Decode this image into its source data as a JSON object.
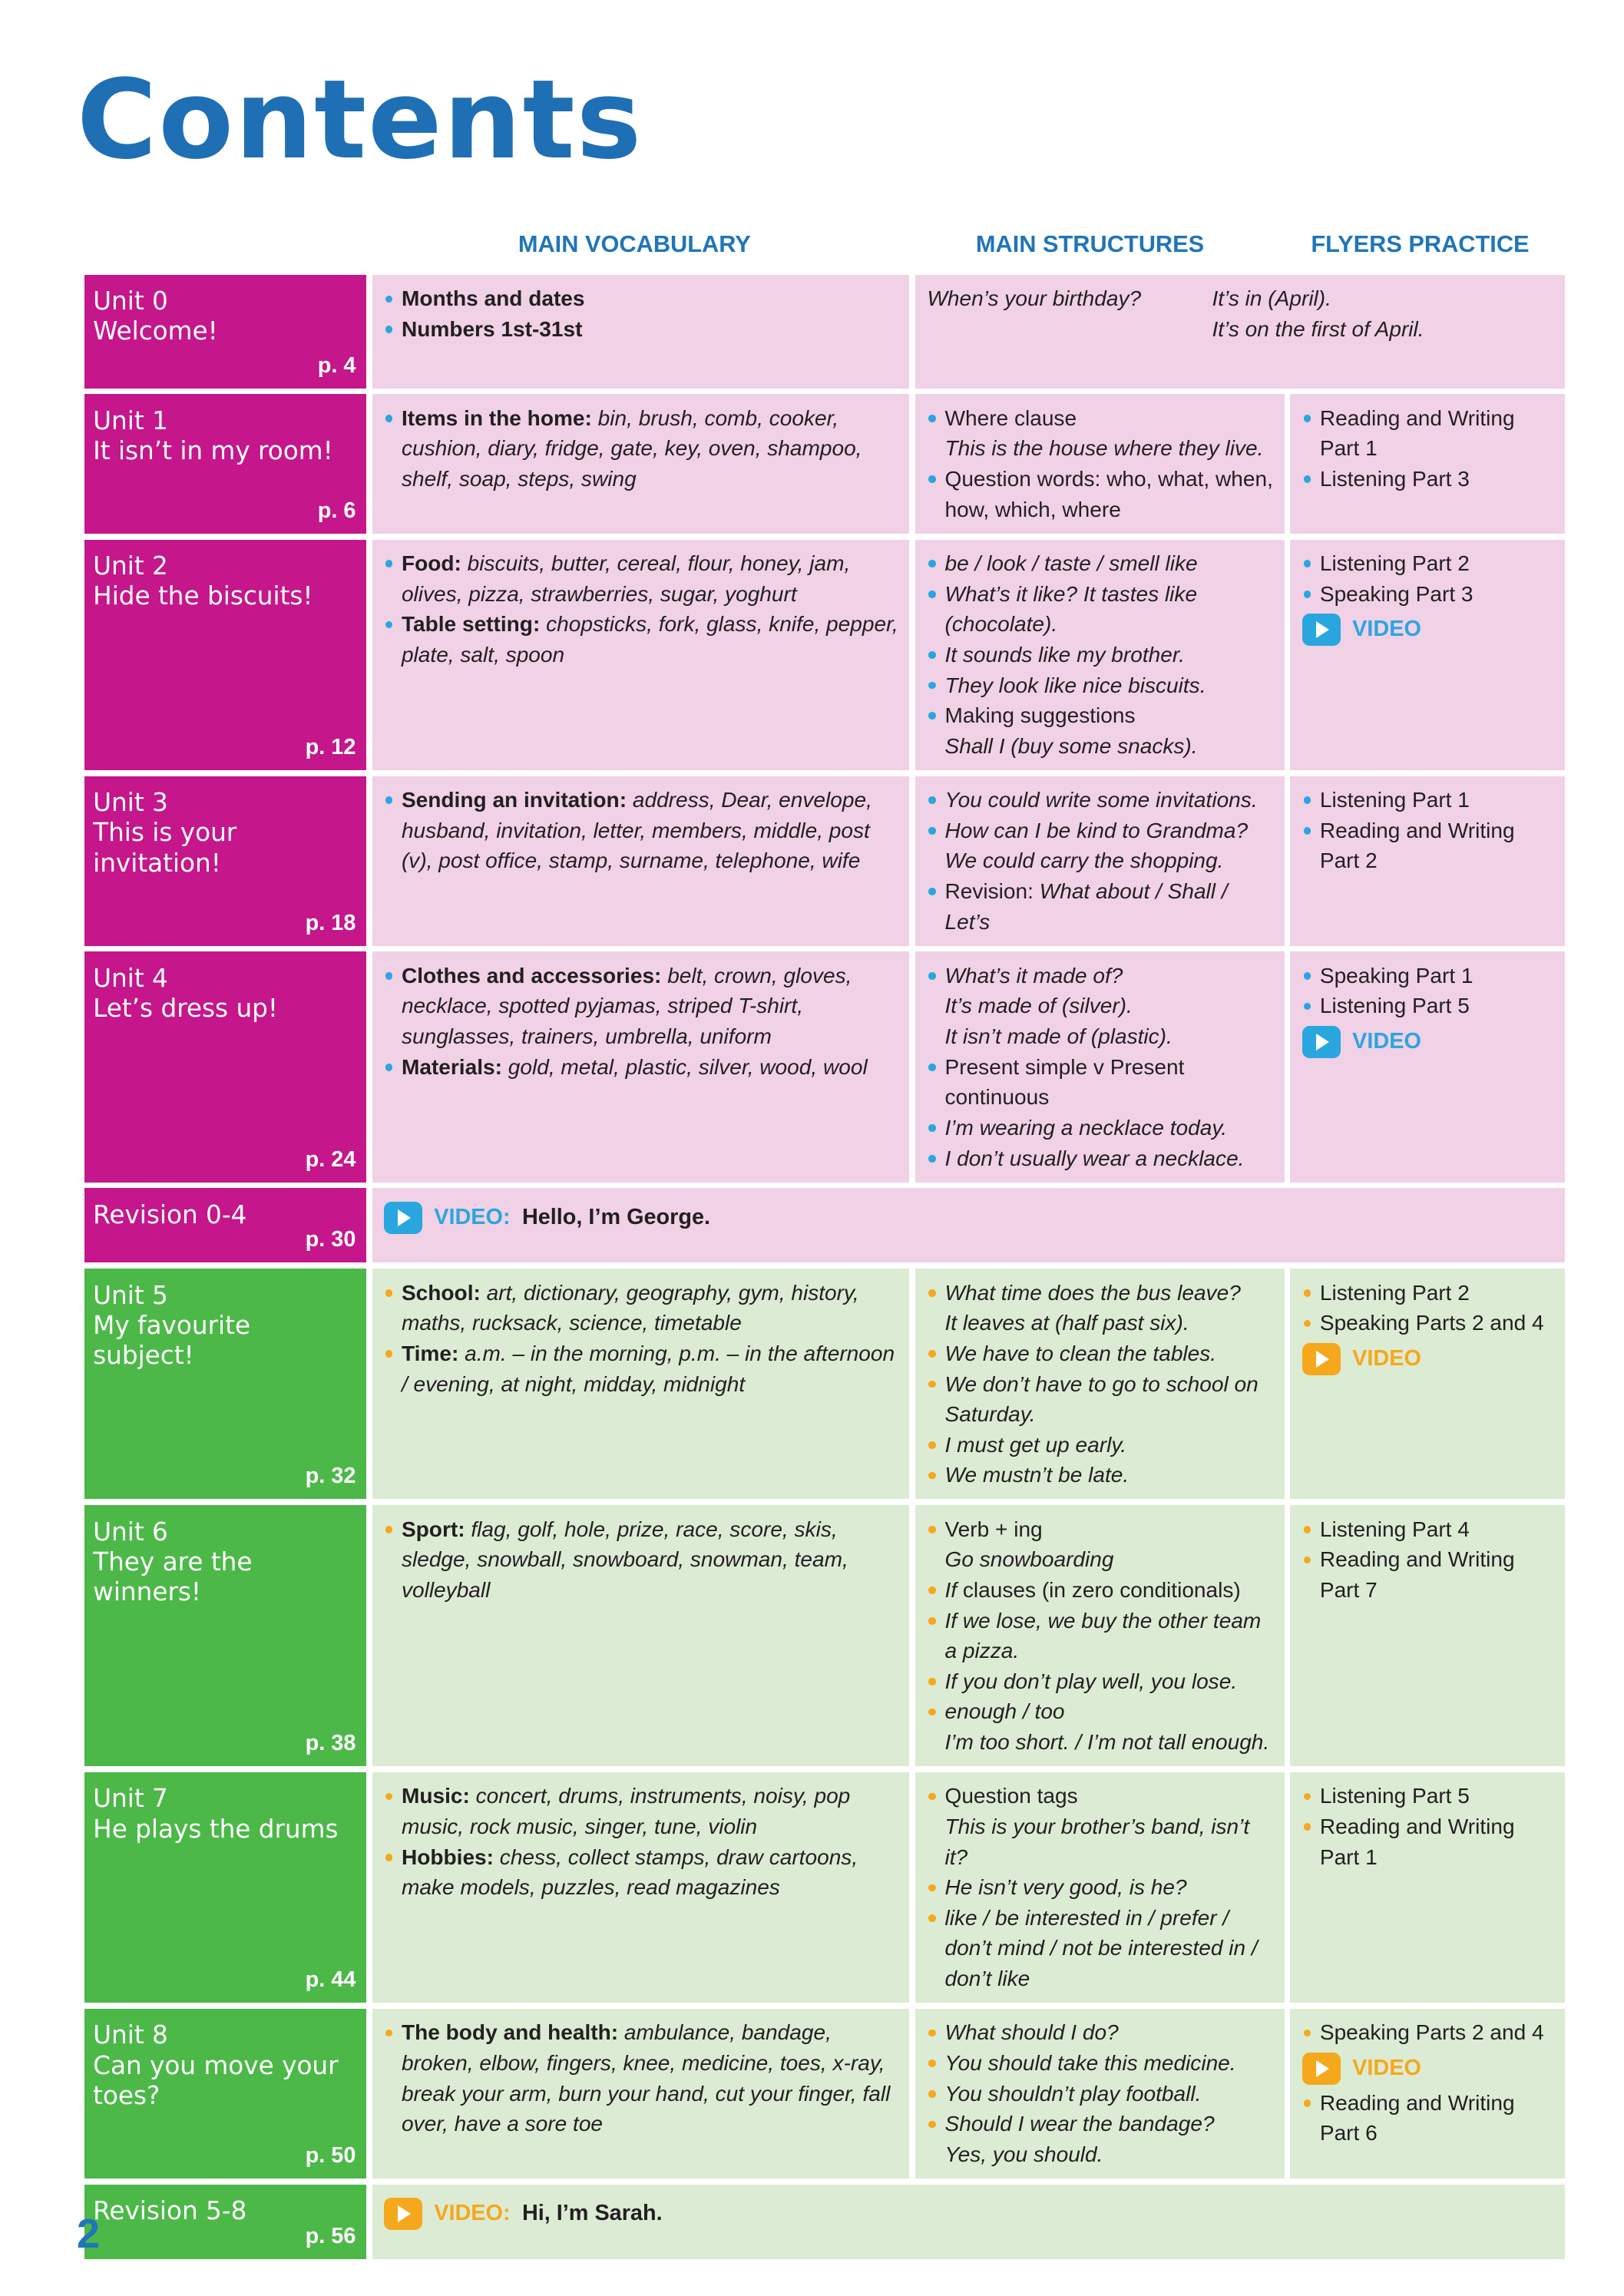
{
  "title": "Contents",
  "page_number": "2",
  "headers": {
    "vocab": "MAIN VOCABULARY",
    "structures": "MAIN STRUCTURES",
    "flyers": "FLYERS PRACTICE"
  },
  "colors": {
    "pink_unit": "#c5168b",
    "pink_cell": "#f0d1e6",
    "green_unit": "#4cb848",
    "green_cell": "#dcebd4",
    "blue_bullet": "#2aa6df",
    "orange_bullet": "#f5a81c",
    "heading_blue": "#1f75bb"
  },
  "rows": [
    {
      "type": "unit0",
      "theme": "pink",
      "unit": "Unit 0",
      "name": "Welcome!",
      "page": "p. 4",
      "vocab": [
        {
          "b": "Months and dates",
          "t": ""
        },
        {
          "b": "Numbers 1st-31st",
          "t": ""
        }
      ],
      "structures_pairs": [
        {
          "q": "When’s your birthday?",
          "a": "It’s in (April)."
        },
        {
          "q": "",
          "a": "It’s on the first of April."
        }
      ]
    },
    {
      "type": "unit",
      "theme": "pink",
      "unit": "Unit 1",
      "name": "It isn’t in my room!",
      "page": "p. 6",
      "vocab": [
        {
          "b": "Items in the home:",
          "t": " bin, brush, comb, cooker, cushion, diary, fridge, gate, key, oven, shampoo, shelf, soap, steps, swing"
        }
      ],
      "structures": [
        {
          "lines": [
            [
              {
                "t": "Where clause"
              }
            ],
            [
              {
                "t": "This is the house where they live.",
                "i": true
              }
            ]
          ]
        },
        {
          "lines": [
            [
              {
                "t": "Question words: who, what, when, how, which, where"
              }
            ]
          ]
        }
      ],
      "flyers": [
        {
          "t": "Reading and Writing Part 1"
        },
        {
          "t": "Listening Part 3"
        }
      ]
    },
    {
      "type": "unit",
      "theme": "pink",
      "unit": "Unit 2",
      "name": "Hide the biscuits!",
      "page": "p. 12",
      "vocab": [
        {
          "b": "Food:",
          "t": " biscuits, butter, cereal, flour, honey, jam, olives, pizza, strawberries, sugar, yoghurt"
        },
        {
          "b": "Table setting:",
          "t": " chopsticks, fork, glass, knife, pepper, plate, salt, spoon"
        }
      ],
      "structures": [
        {
          "lines": [
            [
              {
                "t": "be / look / taste / smell like",
                "i": true
              }
            ]
          ]
        },
        {
          "lines": [
            [
              {
                "t": "What’s it like? It tastes like (chocolate).",
                "i": true
              }
            ]
          ]
        },
        {
          "lines": [
            [
              {
                "t": "It sounds like my brother.",
                "i": true
              }
            ]
          ]
        },
        {
          "lines": [
            [
              {
                "t": "They look like nice biscuits.",
                "i": true
              }
            ]
          ]
        },
        {
          "lines": [
            [
              {
                "t": "Making suggestions"
              }
            ],
            [
              {
                "t": "Shall I (buy some snacks).",
                "i": true
              }
            ]
          ]
        }
      ],
      "flyers": [
        {
          "t": "Listening Part 2"
        },
        {
          "t": "Speaking Part 3"
        },
        {
          "video": "VIDEO"
        }
      ]
    },
    {
      "type": "unit",
      "theme": "pink",
      "unit": "Unit 3",
      "name": "This is your invitation!",
      "page": "p. 18",
      "vocab": [
        {
          "b": "Sending an invitation:",
          "t": " address, Dear, envelope, husband, invitation, letter, members, middle, post (v), post office, stamp, surname, telephone, wife"
        }
      ],
      "structures": [
        {
          "lines": [
            [
              {
                "t": "You could write some invitations.",
                "i": true
              }
            ]
          ]
        },
        {
          "lines": [
            [
              {
                "t": "How can I be kind to Grandma?",
                "i": true
              }
            ],
            [
              {
                "t": "We could carry the shopping.",
                "i": true
              }
            ]
          ]
        },
        {
          "lines": [
            [
              {
                "t": "Revision: "
              },
              {
                "t": "What about / Shall / Let’s",
                "i": true
              }
            ]
          ]
        }
      ],
      "flyers": [
        {
          "t": "Listening Part 1"
        },
        {
          "t": "Reading and Writing Part 2"
        }
      ]
    },
    {
      "type": "unit",
      "theme": "pink",
      "unit": "Unit 4",
      "name": "Let’s dress up!",
      "page": "p. 24",
      "vocab": [
        {
          "b": "Clothes and accessories:",
          "t": " belt, crown, gloves, necklace, spotted pyjamas, striped T-shirt, sunglasses, trainers, umbrella, uniform"
        },
        {
          "b": "Materials:",
          "t": " gold, metal, plastic, silver, wood, wool"
        }
      ],
      "structures": [
        {
          "lines": [
            [
              {
                "t": "What’s it made of?",
                "i": true
              }
            ],
            [
              {
                "t": "It’s made of (silver).",
                "i": true
              }
            ],
            [
              {
                "t": "It isn’t made of (plastic).",
                "i": true
              }
            ]
          ]
        },
        {
          "lines": [
            [
              {
                "t": "Present simple v Present continuous"
              }
            ]
          ]
        },
        {
          "lines": [
            [
              {
                "t": "I’m wearing a necklace today.",
                "i": true
              }
            ]
          ]
        },
        {
          "lines": [
            [
              {
                "t": "I don’t usually wear a necklace.",
                "i": true
              }
            ]
          ]
        }
      ],
      "flyers": [
        {
          "t": "Speaking Part 1"
        },
        {
          "t": "Listening Part 5"
        },
        {
          "video": "VIDEO"
        }
      ]
    },
    {
      "type": "revision",
      "theme": "pink",
      "unit": "Revision 0-4",
      "page": "p. 30",
      "video_label": "VIDEO:",
      "video_title": "Hello, I’m George."
    },
    {
      "type": "unit",
      "theme": "green",
      "unit": "Unit 5",
      "name": "My favourite subject!",
      "page": "p. 32",
      "vocab": [
        {
          "b": "School:",
          "t": " art, dictionary, geography, gym, history, maths, rucksack, science, timetable"
        },
        {
          "b": "Time:",
          "t": " a.m. – in the morning, p.m. – in the afternoon / evening, at night, midday, midnight"
        }
      ],
      "structures": [
        {
          "lines": [
            [
              {
                "t": "What time does the bus leave?",
                "i": true
              }
            ],
            [
              {
                "t": "It leaves at (half past six).",
                "i": true
              }
            ]
          ]
        },
        {
          "lines": [
            [
              {
                "t": "We have to clean the tables.",
                "i": true
              }
            ]
          ]
        },
        {
          "lines": [
            [
              {
                "t": "We don’t have to go to school on Saturday.",
                "i": true
              }
            ]
          ]
        },
        {
          "lines": [
            [
              {
                "t": "I must get up early.",
                "i": true
              }
            ]
          ]
        },
        {
          "lines": [
            [
              {
                "t": "We mustn’t be late.",
                "i": true
              }
            ]
          ]
        }
      ],
      "flyers": [
        {
          "t": "Listening Part 2"
        },
        {
          "t": "Speaking Parts 2 and 4"
        },
        {
          "video": "VIDEO"
        }
      ]
    },
    {
      "type": "unit",
      "theme": "green",
      "unit": "Unit 6",
      "name": "They are the winners!",
      "page": "p. 38",
      "vocab": [
        {
          "b": "Sport:",
          "t": " flag, golf, hole, prize, race, score, skis, sledge, snowball, snowboard, snowman, team, volleyball"
        }
      ],
      "structures": [
        {
          "lines": [
            [
              {
                "t": "Verb + ing"
              }
            ],
            [
              {
                "t": "Go snowboarding",
                "i": true
              }
            ]
          ]
        },
        {
          "lines": [
            [
              {
                "t": "If",
                "i": true
              },
              {
                "t": " clauses (in zero conditionals)"
              }
            ]
          ]
        },
        {
          "lines": [
            [
              {
                "t": "If we lose, we buy the other team a pizza.",
                "i": true
              }
            ]
          ]
        },
        {
          "lines": [
            [
              {
                "t": "If you don’t play well, you lose.",
                "i": true
              }
            ]
          ]
        },
        {
          "lines": [
            [
              {
                "t": "enough / too",
                "i": true
              }
            ],
            [
              {
                "t": "I’m too short. / I’m not tall enough.",
                "i": true
              }
            ]
          ]
        }
      ],
      "flyers": [
        {
          "t": "Listening Part 4"
        },
        {
          "t": "Reading and Writing Part 7"
        }
      ]
    },
    {
      "type": "unit",
      "theme": "green",
      "unit": "Unit 7",
      "name": "He plays the drums",
      "page": "p. 44",
      "vocab": [
        {
          "b": "Music:",
          "t": " concert, drums, instruments, noisy, pop music, rock music, singer, tune, violin"
        },
        {
          "b": "Hobbies:",
          "t": " chess, collect stamps, draw cartoons, make models, puzzles, read magazines"
        }
      ],
      "structures": [
        {
          "lines": [
            [
              {
                "t": "Question tags"
              }
            ],
            [
              {
                "t": "This is your brother’s band, isn’t it?",
                "i": true
              }
            ]
          ]
        },
        {
          "lines": [
            [
              {
                "t": "He isn’t very good, is he?",
                "i": true
              }
            ]
          ]
        },
        {
          "lines": [
            [
              {
                "t": "like / be interested in / prefer / don’t mind / not be interested in / don’t like",
                "i": true
              }
            ]
          ]
        }
      ],
      "flyers": [
        {
          "t": "Listening Part 5"
        },
        {
          "t": "Reading and Writing Part 1"
        }
      ]
    },
    {
      "type": "unit",
      "theme": "green",
      "unit": "Unit 8",
      "name": "Can you move your toes?",
      "page": "p. 50",
      "vocab": [
        {
          "b": "The body and health:",
          "t": " ambulance, bandage, broken, elbow, fingers, knee, medicine, toes, x-ray, break your arm, burn your hand, cut your finger, fall over, have a sore toe"
        }
      ],
      "structures": [
        {
          "lines": [
            [
              {
                "t": "What should I do?",
                "i": true
              }
            ]
          ]
        },
        {
          "lines": [
            [
              {
                "t": "You should take this medicine.",
                "i": true
              }
            ]
          ]
        },
        {
          "lines": [
            [
              {
                "t": "You shouldn’t play football.",
                "i": true
              }
            ]
          ]
        },
        {
          "lines": [
            [
              {
                "t": "Should I wear the bandage?",
                "i": true
              }
            ],
            [
              {
                "t": "Yes, you should.",
                "i": true
              }
            ]
          ]
        }
      ],
      "flyers": [
        {
          "t": "Speaking Parts 2 and 4"
        },
        {
          "video": "VIDEO"
        },
        {
          "t": "Reading and Writing Part 6"
        }
      ]
    },
    {
      "type": "revision",
      "theme": "green",
      "unit": "Revision 5-8",
      "page": "p. 56",
      "video_label": "VIDEO:",
      "video_title": "Hi, I’m Sarah."
    }
  ]
}
